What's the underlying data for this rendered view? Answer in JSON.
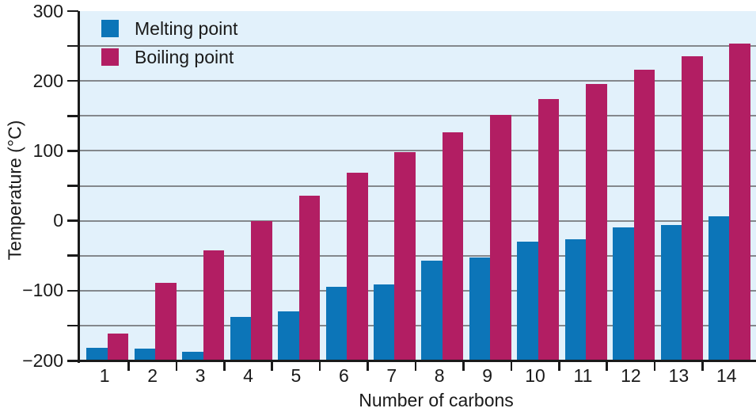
{
  "chart_data": {
    "type": "bar",
    "title": "",
    "xlabel": "Number of carbons",
    "ylabel": "Temperature (°C)",
    "categories": [
      "1",
      "2",
      "3",
      "4",
      "5",
      "6",
      "7",
      "8",
      "9",
      "10",
      "11",
      "12",
      "13",
      "14"
    ],
    "series": [
      {
        "name": "Melting point",
        "color": "#0c75b8",
        "values": [
          -182,
          -183,
          -188,
          -138,
          -130,
          -95,
          -91,
          -57,
          -53,
          -30,
          -26,
          -10,
          -6,
          6
        ]
      },
      {
        "name": "Boiling point",
        "color": "#b21e63",
        "values": [
          -162,
          -89,
          -42,
          -1,
          36,
          69,
          98,
          126,
          151,
          174,
          196,
          216,
          235,
          254
        ]
      }
    ],
    "ylim": [
      -200,
      300
    ],
    "y_ticks": [
      {
        "value": 300,
        "label": "300"
      },
      {
        "value": 250,
        "label": ""
      },
      {
        "value": 200,
        "label": "200"
      },
      {
        "value": 150,
        "label": ""
      },
      {
        "value": 100,
        "label": "100"
      },
      {
        "value": 50,
        "label": ""
      },
      {
        "value": 0,
        "label": "0"
      },
      {
        "value": -50,
        "label": ""
      },
      {
        "value": -100,
        "label": "−100"
      },
      {
        "value": -150,
        "label": ""
      },
      {
        "value": -200,
        "label": "−200"
      }
    ],
    "grid": true,
    "legend_position": "top-left",
    "colors": {
      "plot_background": "#e2f1fb",
      "gridline": "#84888c",
      "axis": "#1a1a1a",
      "text": "#1a1a1a"
    }
  }
}
